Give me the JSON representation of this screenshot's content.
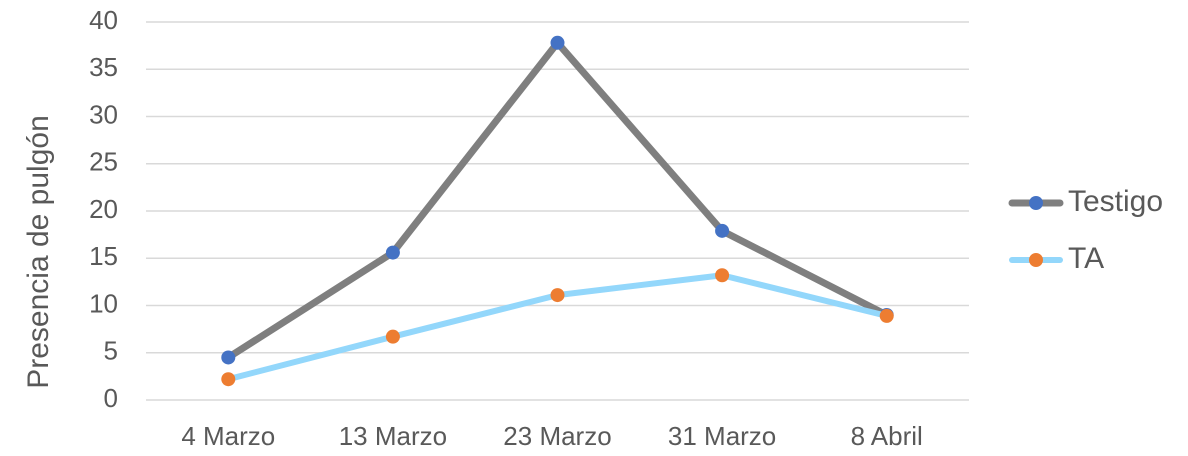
{
  "chart_data": {
    "type": "line",
    "y_label": "Presencia de pulgón",
    "categories": [
      "4 Marzo",
      "13 Marzo",
      "23 Marzo",
      "31 Marzo",
      "8 Abril"
    ],
    "series": [
      {
        "name": "Testigo",
        "color": "#7f7f7f",
        "marker_color": "#4472c4",
        "values": [
          4.5,
          15.6,
          37.8,
          17.9,
          9.0
        ]
      },
      {
        "name": "TA",
        "color": "#93d7fb",
        "marker_color": "#ed7d31",
        "values": [
          2.2,
          6.7,
          11.1,
          13.2,
          8.9
        ]
      }
    ],
    "ylim": [
      0,
      40
    ],
    "yticks": [
      0,
      5,
      10,
      15,
      20,
      25,
      30,
      35,
      40
    ],
    "grid": true,
    "legend": "right"
  }
}
